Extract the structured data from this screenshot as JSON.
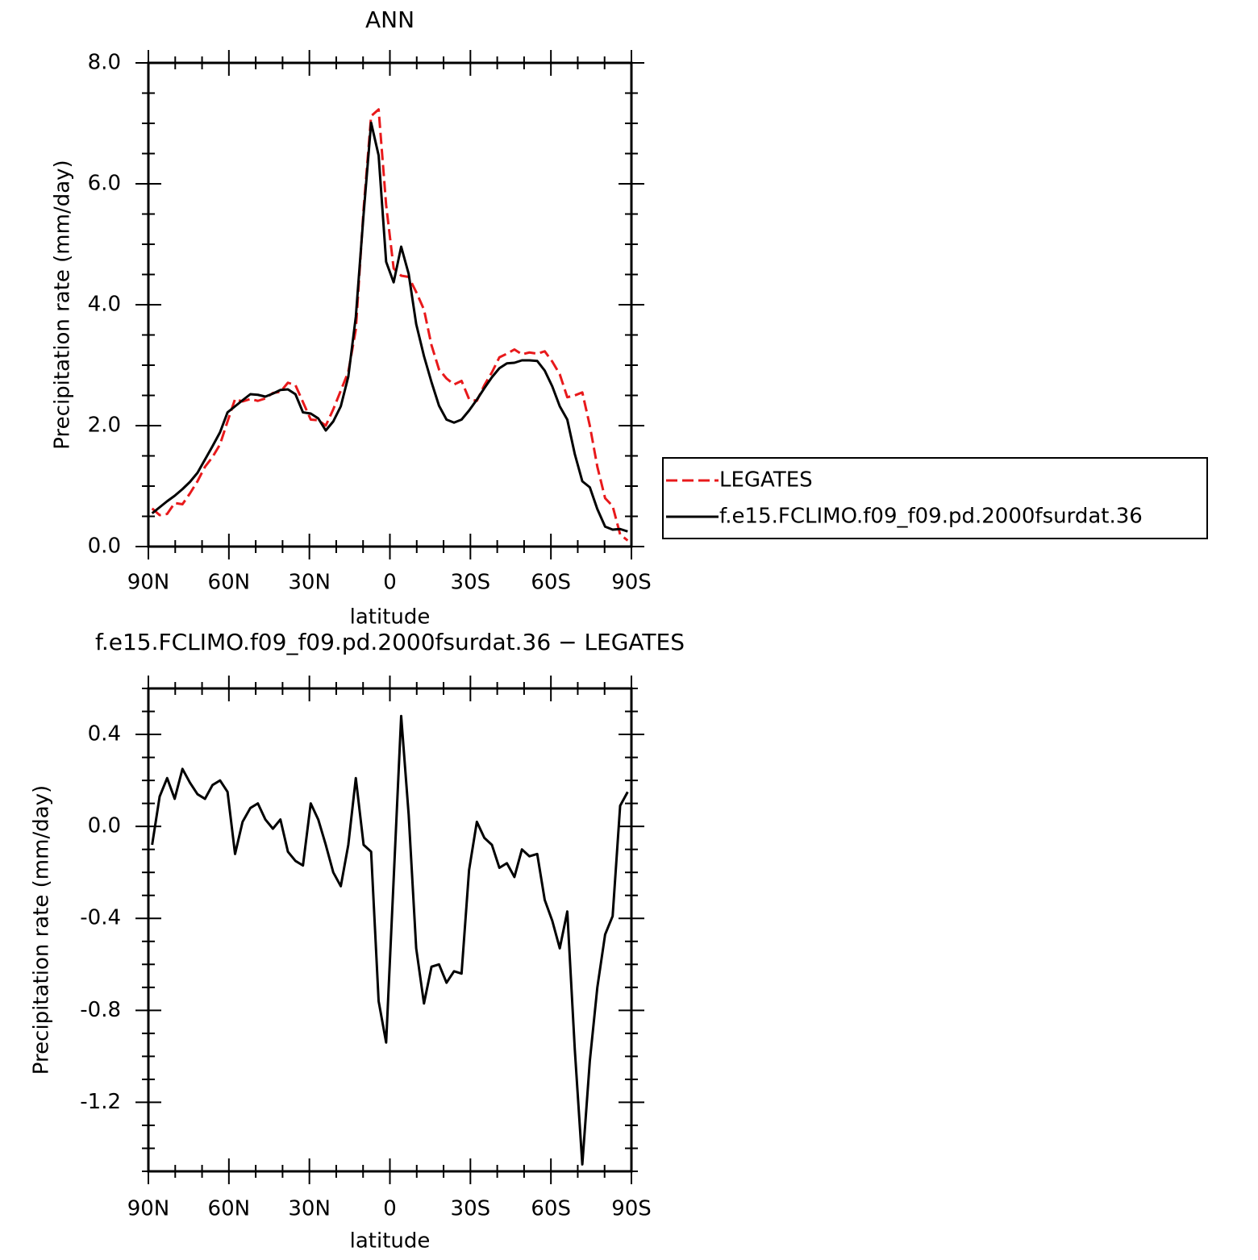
{
  "chart_data": [
    {
      "type": "line",
      "title": "ANN",
      "x_label": "latitude",
      "y_label": "Precipitation rate (mm/day)",
      "x": [
        88.6,
        85.8,
        83.0,
        80.2,
        77.3,
        74.5,
        71.7,
        68.9,
        66.1,
        63.3,
        60.5,
        57.7,
        54.9,
        52.0,
        49.2,
        46.4,
        43.6,
        40.8,
        38.0,
        35.2,
        32.4,
        29.5,
        26.7,
        23.9,
        21.1,
        18.3,
        15.5,
        12.7,
        9.8,
        7.0,
        4.2,
        1.4,
        -1.4,
        -4.2,
        -7.0,
        -9.8,
        -12.7,
        -15.5,
        -18.3,
        -21.1,
        -23.9,
        -26.7,
        -29.5,
        -32.4,
        -35.2,
        -38.0,
        -40.8,
        -43.6,
        -46.4,
        -49.2,
        -52.0,
        -54.9,
        -57.7,
        -60.5,
        -63.3,
        -66.1,
        -68.9,
        -71.7,
        -74.5,
        -77.3,
        -80.2,
        -83.0,
        -85.8,
        -88.6
      ],
      "series": [
        {
          "name": "LEGATES",
          "color": "#e8191b",
          "dashed": true,
          "values": [
            0.63,
            0.52,
            0.54,
            0.72,
            0.7,
            0.88,
            1.08,
            1.32,
            1.48,
            1.69,
            2.07,
            2.44,
            2.4,
            2.44,
            2.41,
            2.45,
            2.54,
            2.56,
            2.71,
            2.67,
            2.39,
            2.1,
            2.09,
            2.0,
            2.27,
            2.58,
            2.89,
            3.59,
            5.58,
            7.12,
            7.23,
            5.65,
            4.6,
            4.48,
            4.46,
            4.21,
            3.92,
            3.33,
            2.93,
            2.78,
            2.68,
            2.74,
            2.44,
            2.41,
            2.67,
            2.88,
            3.13,
            3.19,
            3.26,
            3.18,
            3.21,
            3.19,
            3.23,
            3.06,
            2.85,
            2.47,
            2.5,
            2.55,
            2.0,
            1.32,
            0.8,
            0.67,
            0.2,
            0.1
          ]
        },
        {
          "name": "f.e15.FCLIMO.f09_f09.pd.2000fsurdat.36",
          "color": "#000000",
          "dashed": false,
          "values": [
            0.55,
            0.65,
            0.75,
            0.84,
            0.95,
            1.07,
            1.22,
            1.44,
            1.66,
            1.89,
            2.22,
            2.32,
            2.42,
            2.52,
            2.51,
            2.48,
            2.53,
            2.59,
            2.6,
            2.52,
            2.22,
            2.2,
            2.12,
            1.92,
            2.07,
            2.32,
            2.81,
            3.8,
            5.5,
            7.01,
            6.47,
            4.71,
            4.37,
            4.96,
            4.51,
            3.68,
            3.15,
            2.72,
            2.33,
            2.1,
            2.05,
            2.1,
            2.25,
            2.43,
            2.62,
            2.8,
            2.95,
            3.03,
            3.04,
            3.08,
            3.08,
            3.07,
            2.91,
            2.65,
            2.32,
            2.1,
            1.53,
            1.08,
            0.98,
            0.62,
            0.33,
            0.28,
            0.29,
            0.25
          ]
        }
      ],
      "xlim": [
        90,
        -90
      ],
      "xticks": [
        {
          "value": 90,
          "label": "90N"
        },
        {
          "value": 60,
          "label": "60N"
        },
        {
          "value": 30,
          "label": "30N"
        },
        0,
        {
          "value": -30,
          "label": "30S"
        },
        {
          "value": -60,
          "label": "60S"
        },
        {
          "value": -90,
          "label": "90S"
        }
      ],
      "ylim": [
        0,
        8
      ],
      "yticks": [
        {
          "value": 0,
          "label": "0.0"
        },
        {
          "value": 2,
          "label": "2.0"
        },
        {
          "value": 4,
          "label": "4.0"
        },
        {
          "value": 6,
          "label": "6.0"
        },
        {
          "value": 8,
          "label": "8.0"
        }
      ],
      "legend": "right",
      "grid": false
    },
    {
      "type": "line",
      "title": "f.e15.FCLIMO.f09_f09.pd.2000fsurdat.36 − LEGATES",
      "x_label": "latitude",
      "y_label": "Precipitation rate (mm/day)",
      "x": [
        88.6,
        85.8,
        83.0,
        80.2,
        77.3,
        74.5,
        71.7,
        68.9,
        66.1,
        63.3,
        60.5,
        57.7,
        54.9,
        52.0,
        49.2,
        46.4,
        43.6,
        40.8,
        38.0,
        35.2,
        32.4,
        29.5,
        26.7,
        23.9,
        21.1,
        18.3,
        15.5,
        12.7,
        9.8,
        7.0,
        4.2,
        1.4,
        -1.4,
        -4.2,
        -7.0,
        -9.8,
        -12.7,
        -15.5,
        -18.3,
        -21.1,
        -23.9,
        -26.7,
        -29.5,
        -32.4,
        -35.2,
        -38.0,
        -40.8,
        -43.6,
        -46.4,
        -49.2,
        -52.0,
        -54.9,
        -57.7,
        -60.5,
        -63.3,
        -66.1,
        -68.9,
        -71.7,
        -74.5,
        -77.3,
        -80.2,
        -83.0,
        -85.8,
        -88.6
      ],
      "values": [
        -0.08,
        0.13,
        0.21,
        0.12,
        0.25,
        0.19,
        0.14,
        0.12,
        0.18,
        0.2,
        0.15,
        -0.12,
        0.02,
        0.08,
        0.1,
        0.03,
        -0.01,
        0.03,
        -0.11,
        -0.15,
        -0.17,
        0.1,
        0.03,
        -0.08,
        -0.2,
        -0.26,
        -0.08,
        0.21,
        -0.08,
        -0.11,
        -0.76,
        -0.94,
        -0.23,
        0.48,
        0.05,
        -0.53,
        -0.77,
        -0.61,
        -0.6,
        -0.68,
        -0.63,
        -0.64,
        -0.19,
        0.02,
        -0.05,
        -0.08,
        -0.18,
        -0.16,
        -0.22,
        -0.1,
        -0.13,
        -0.12,
        -0.32,
        -0.41,
        -0.53,
        -0.37,
        -0.97,
        -1.47,
        -1.02,
        -0.7,
        -0.47,
        -0.39,
        0.09,
        0.15
      ],
      "color": "#000000",
      "xlim": [
        90,
        -90
      ],
      "xticks": [
        {
          "value": 90,
          "label": "90N"
        },
        {
          "value": 60,
          "label": "60N"
        },
        {
          "value": 30,
          "label": "30N"
        },
        0,
        {
          "value": -30,
          "label": "30S"
        },
        {
          "value": -60,
          "label": "60S"
        },
        {
          "value": -90,
          "label": "90S"
        }
      ],
      "ylim": [
        -1.5,
        0.6
      ],
      "yticks": [
        -1.2,
        -0.8,
        -0.4,
        {
          "value": 0,
          "label": "0.0"
        },
        0.4
      ],
      "grid": false
    }
  ]
}
